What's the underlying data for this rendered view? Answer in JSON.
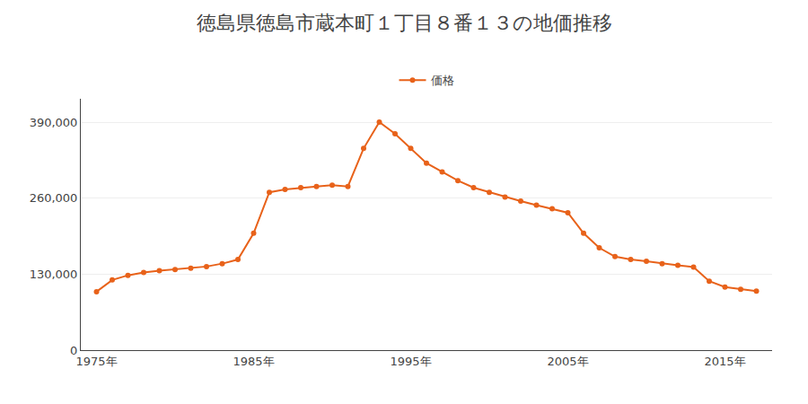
{
  "chart_data": {
    "type": "line",
    "title": "徳島県徳島市蔵本町１丁目８番１３の地価推移",
    "x": [
      1975,
      1976,
      1977,
      1978,
      1979,
      1980,
      1981,
      1982,
      1983,
      1984,
      1985,
      1986,
      1987,
      1988,
      1989,
      1990,
      1991,
      1992,
      1993,
      1994,
      1995,
      1996,
      1997,
      1998,
      1999,
      2000,
      2001,
      2002,
      2003,
      2004,
      2005,
      2006,
      2007,
      2008,
      2009,
      2010,
      2011,
      2012,
      2013,
      2014,
      2015,
      2016,
      2017
    ],
    "series": [
      {
        "name": "価格",
        "color": "#e8621a",
        "marker": "circle",
        "line_style": "solid",
        "values": [
          100000,
          120000,
          128000,
          133000,
          136000,
          138000,
          140000,
          143000,
          148000,
          155000,
          200000,
          270000,
          275000,
          278000,
          280000,
          282000,
          280000,
          345000,
          390000,
          370000,
          345000,
          320000,
          305000,
          290000,
          278000,
          270000,
          262000,
          255000,
          248000,
          242000,
          235000,
          200000,
          175000,
          160000,
          155000,
          152000,
          148000,
          145000,
          142000,
          118000,
          108000,
          104000,
          101000
        ]
      }
    ],
    "xlim": [
      1974,
      2018
    ],
    "xticks": [
      {
        "value": 1975,
        "label": "1975年"
      },
      {
        "value": 1985,
        "label": "1985年"
      },
      {
        "value": 1995,
        "label": "1995年"
      },
      {
        "value": 2005,
        "label": "2005年"
      },
      {
        "value": 2015,
        "label": "2015年"
      }
    ],
    "ylim": [
      0,
      430000
    ],
    "yticks": [
      0,
      {
        "value": 130000,
        "label": "130,000"
      },
      {
        "value": 260000,
        "label": "260,000"
      },
      {
        "value": 390000,
        "label": "390,000"
      }
    ],
    "grid": true,
    "legend": "top"
  }
}
